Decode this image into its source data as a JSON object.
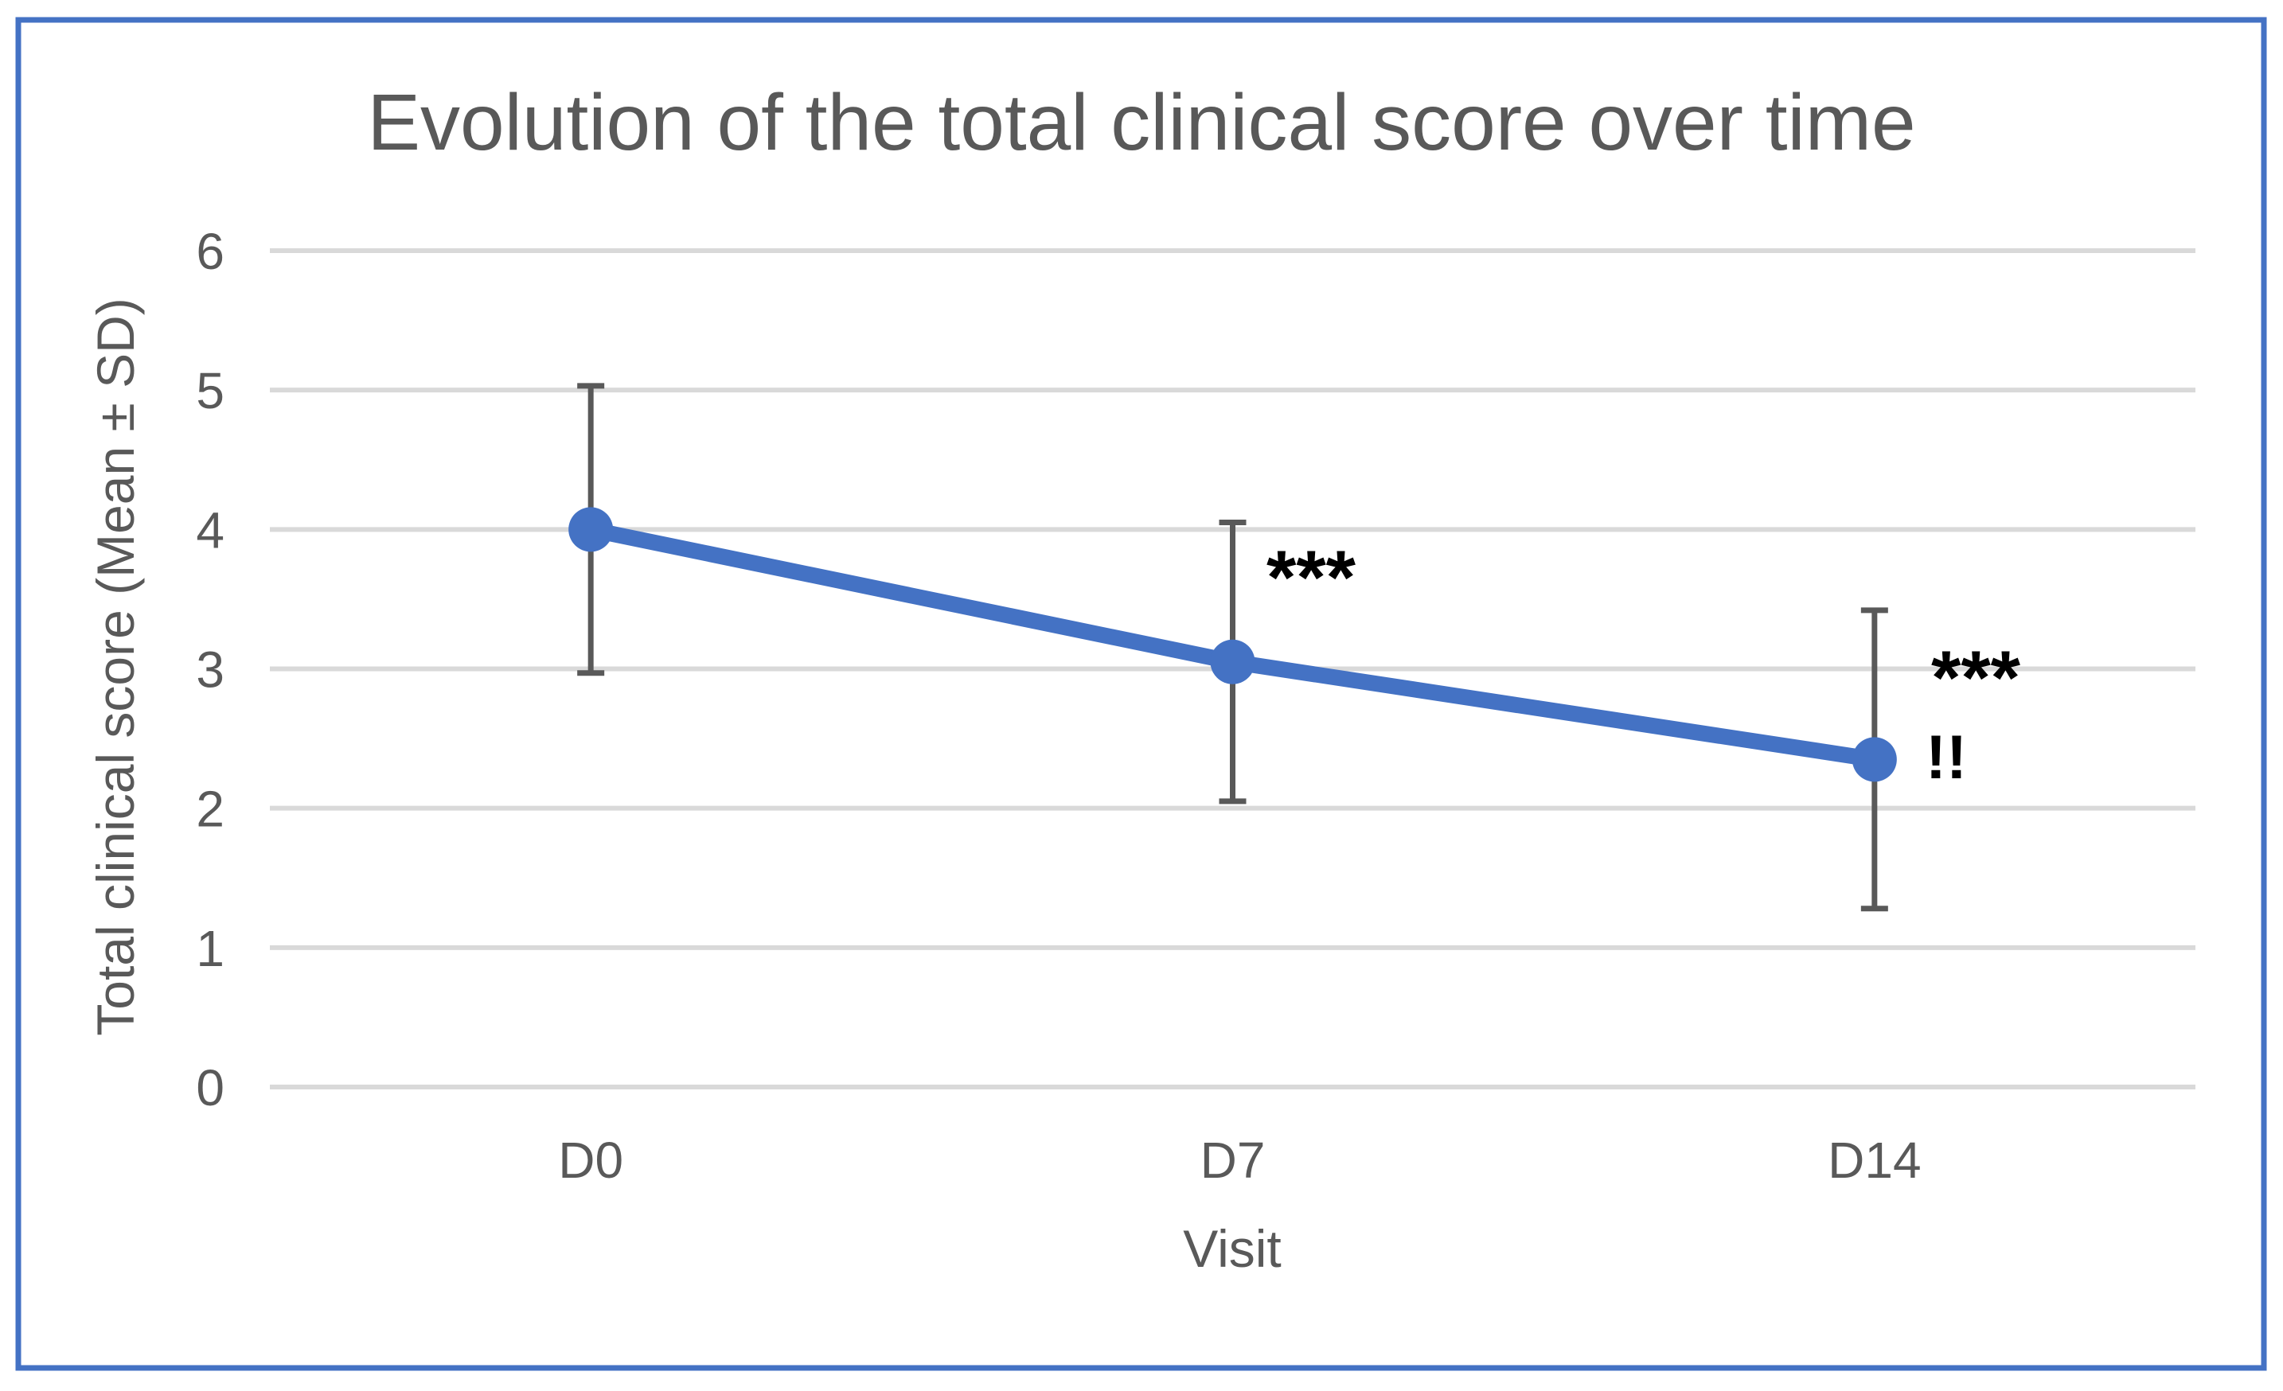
{
  "chart_data": {
    "type": "line",
    "title": "Evolution of the total clinical score over time",
    "xlabel": "Visit",
    "ylabel": "Total clinical score (Mean ± SD)",
    "categories": [
      "D0",
      "D7",
      "D14"
    ],
    "series": [
      {
        "name": "Total clinical score (Mean ± SD)",
        "values": [
          4.0,
          3.05,
          2.35
        ],
        "sd": [
          1.03,
          1.0,
          1.07
        ]
      }
    ],
    "ylim": [
      0,
      6
    ],
    "yticks": [
      0,
      1,
      2,
      3,
      4,
      5,
      6
    ],
    "grid": "horizontal",
    "legend": "none",
    "marker": "circle",
    "annotations": [
      {
        "text": "***",
        "near": "D7",
        "x": 1647,
        "y": 726,
        "font_px": 96,
        "baseline": "central"
      },
      {
        "text": "***",
        "near": "D14",
        "x": 2482,
        "y": 852,
        "font_px": 96,
        "baseline": "central"
      },
      {
        "text": "!!",
        "near": "D14",
        "x": 2445,
        "y": 978,
        "font_px": 78,
        "baseline": "auto"
      }
    ],
    "colors": {
      "series_line": "#4472C4",
      "marker": "#4472C4",
      "error_bar": "#595959",
      "gridline": "#D9D9D9",
      "text": "#595959",
      "annotation": "#000000",
      "border": "#4472C4",
      "background": "#FFFFFF"
    }
  }
}
